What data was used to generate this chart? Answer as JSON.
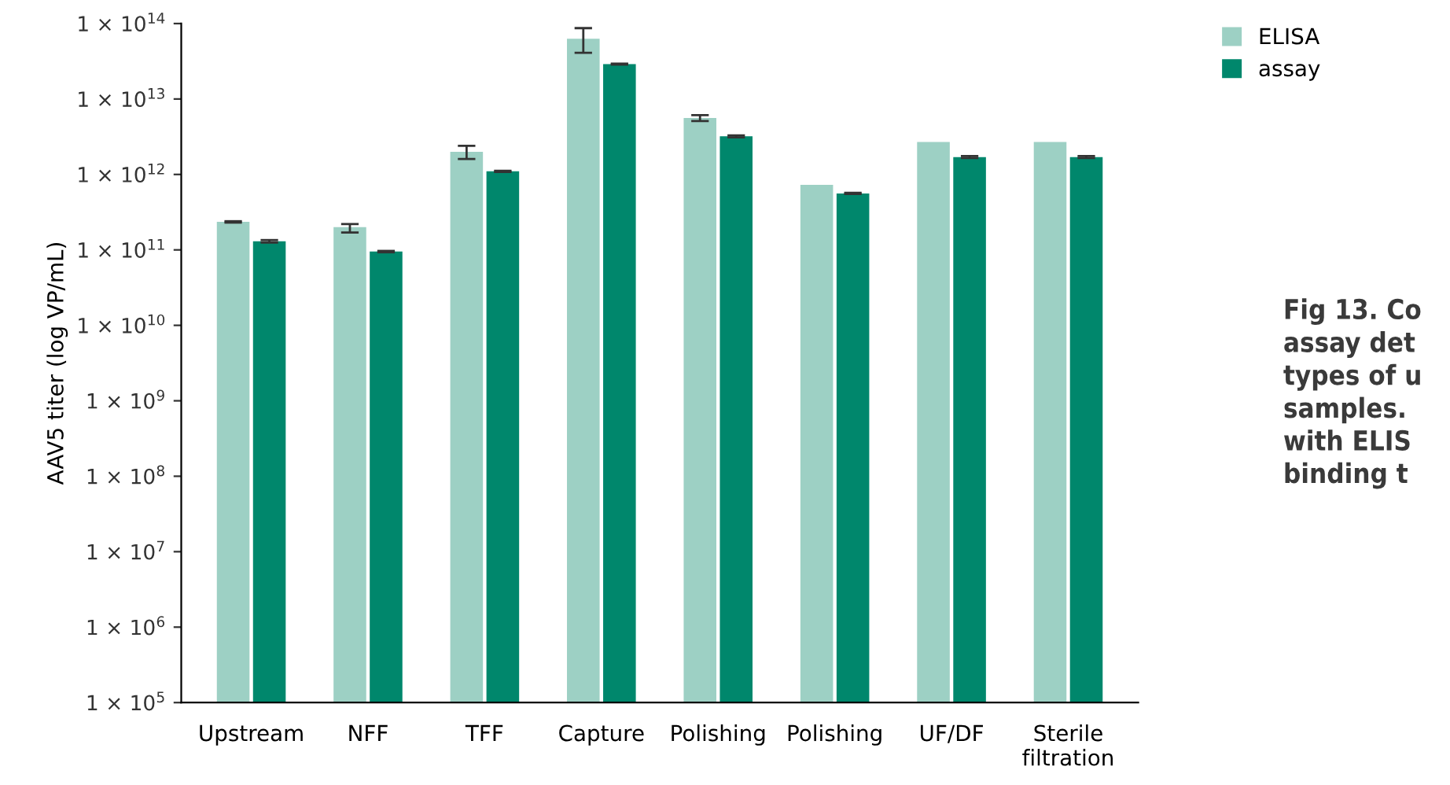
{
  "chart_data": {
    "type": "bar",
    "ylabel": "AAV5 titer (log VP/mL)",
    "categories": [
      "Upstream",
      "NFF",
      "TFF",
      "Capture",
      "Polishing",
      "Polishing",
      "UF/DF",
      "Sterile\nfiltration"
    ],
    "series": [
      {
        "name": "ELISA",
        "color": "#9dd0c4",
        "values": [
          235000000000.0,
          200000000000.0,
          2000000000000.0,
          63000000000000.0,
          5600000000000.0,
          730000000000.0,
          2700000000000.0,
          2700000000000.0
        ],
        "errors": [
          [
            230000000000.0,
            240000000000.0
          ],
          [
            170000000000.0,
            220000000000.0
          ],
          [
            1600000000000.0,
            2400000000000.0
          ],
          [
            41000000000000.0,
            87000000000000.0
          ],
          [
            5100000000000.0,
            6100000000000.0
          ],
          null,
          null,
          null
        ]
      },
      {
        "name": "assay",
        "color": "#00876c",
        "values": [
          130000000000.0,
          95000000000.0,
          1100000000000.0,
          29000000000000.0,
          3200000000000.0,
          560000000000.0,
          1700000000000.0,
          1700000000000.0
        ],
        "errors": [
          [
            125000000000.0,
            135000000000.0
          ],
          [
            93000000000.0,
            97000000000.0
          ],
          [
            1080000000000.0,
            1120000000000.0
          ],
          [
            28500000000000.0,
            29500000000000.0
          ],
          [
            3100000000000.0,
            3300000000000.0
          ],
          [
            550000000000.0,
            570000000000.0
          ],
          [
            1650000000000.0,
            1750000000000.0
          ],
          [
            1650000000000.0,
            1750000000000.0
          ]
        ]
      }
    ],
    "log": "y",
    "ylim": [
      100000.0,
      100000000000000.0
    ],
    "yticks": [
      {
        "value": 100000.0,
        "label": "1 × 10$^{5}$"
      },
      {
        "value": 1000000.0,
        "label": "1 × 10$^{6}$"
      },
      {
        "value": 10000000.0,
        "label": "1 × 10$^{7}$"
      },
      {
        "value": 100000000.0,
        "label": "1 × 10$^{8}$"
      },
      {
        "value": 1000000000.0,
        "label": "1 × 10$^{9}$"
      },
      {
        "value": 10000000000.0,
        "label": "1 × 10$^{10}$"
      },
      {
        "value": 100000000000.0,
        "label": "1 × 10$^{11}$"
      },
      {
        "value": 1000000000000.0,
        "label": "1 × 10$^{12}$"
      },
      {
        "value": 10000000000000.0,
        "label": "1 × 10$^{13}$"
      },
      {
        "value": 100000000000000.0,
        "label": "1 × 10$^{14}$"
      }
    ],
    "grid": false,
    "legend": "top right",
    "annotations": [
      "Fig 13. Co\nassay det\ntypes of u\nsamples.\nwith ELIS\nbinding t"
    ]
  }
}
